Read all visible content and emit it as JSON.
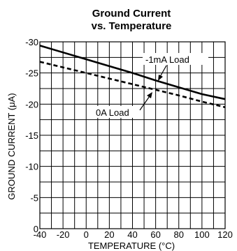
{
  "chart_data": {
    "type": "line",
    "title_line1": "Ground Current",
    "title_line2": "vs. Temperature",
    "xlabel": "TEMPERATURE (°C)",
    "ylabel": "GROUND CURRENT (μA)",
    "xlim": [
      -40,
      120
    ],
    "ylim": [
      0,
      -30
    ],
    "x_ticks": [
      -40,
      -20,
      0,
      20,
      40,
      60,
      80,
      100,
      120
    ],
    "y_ticks": [
      0,
      -5,
      -10,
      -15,
      -20,
      -25,
      -30
    ],
    "grid": true,
    "series": [
      {
        "name": "-1mA Load",
        "style": "solid",
        "color": "#000000",
        "x": [
          -40,
          -20,
          0,
          20,
          40,
          60,
          80,
          100,
          120
        ],
        "y": [
          -29.4,
          -28.3,
          -27.2,
          -26.1,
          -25.0,
          -23.8,
          -22.7,
          -21.6,
          -20.8
        ]
      },
      {
        "name": "0A Load",
        "style": "dashed",
        "color": "#000000",
        "x": [
          -40,
          -20,
          0,
          20,
          40,
          60,
          80,
          100,
          120
        ],
        "y": [
          -26.8,
          -25.9,
          -25.0,
          -24.1,
          -23.2,
          -22.3,
          -21.4,
          -20.4,
          -19.5
        ]
      }
    ]
  }
}
